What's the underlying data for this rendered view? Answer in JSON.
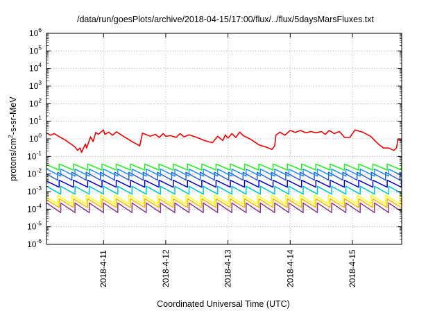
{
  "chart_data": {
    "type": "line",
    "title": "/data/run/goesPlots/archive/2018-04-15/17:00/flux/../flux/5daysMarsFluxes.txt",
    "xlabel": "Coordinated Universal Time (UTC)",
    "ylabel": {
      "pre": "protons/cm",
      "sup": "2",
      "post": "-s-sr-MeV"
    },
    "y_scale": "log",
    "ylim": [
      1e-06,
      1000000.0
    ],
    "x_range_days": [
      "2018-04-10 02:00",
      "2018-04-15 19:00"
    ],
    "x_ticks": [
      "2018-4-11",
      "2018-4-12",
      "2018-4-13",
      "2018-4-14",
      "2018-4-15"
    ],
    "y_ticks": [
      {
        "base": "10",
        "exp": "-6"
      },
      {
        "base": "10",
        "exp": "-5"
      },
      {
        "base": "10",
        "exp": "-4"
      },
      {
        "base": "10",
        "exp": "-3"
      },
      {
        "base": "10",
        "exp": "-2"
      },
      {
        "base": "10",
        "exp": "-1"
      },
      {
        "base": "10",
        "exp": "0"
      },
      {
        "base": "10",
        "exp": "1"
      },
      {
        "base": "10",
        "exp": "2"
      },
      {
        "base": "10",
        "exp": "3"
      },
      {
        "base": "10",
        "exp": "4"
      },
      {
        "base": "10",
        "exp": "5"
      },
      {
        "base": "10",
        "exp": "6"
      }
    ],
    "grid": true,
    "series": [
      {
        "color": "#ee0000",
        "x": [
          "2018-04-10 02:00",
          "2018-04-10 03:30",
          "2018-04-10 05:00",
          "2018-04-10 07:00",
          "2018-04-10 09:00",
          "2018-04-10 11:30",
          "2018-04-10 13:00",
          "2018-04-10 14:00",
          "2018-04-10 15:00",
          "2018-04-10 15:30",
          "2018-04-10 17:00",
          "2018-04-10 17:30",
          "2018-04-10 19:00",
          "2018-04-10 20:00",
          "2018-04-10 21:00",
          "2018-04-10 22:00",
          "2018-04-11 00:00",
          "2018-04-11 00:30",
          "2018-04-11 02:00",
          "2018-04-11 03:30",
          "2018-04-11 05:00",
          "2018-04-11 08:00",
          "2018-04-11 11:00",
          "2018-04-11 14:00",
          "2018-04-11 15:00",
          "2018-04-11 18:00",
          "2018-04-11 20:00",
          "2018-04-11 21:30",
          "2018-04-11 23:00",
          "2018-04-12 00:00",
          "2018-04-12 02:00",
          "2018-04-12 04:00",
          "2018-04-12 05:30",
          "2018-04-12 07:00",
          "2018-04-12 09:00",
          "2018-04-12 12:00",
          "2018-04-12 15:00",
          "2018-04-12 18:00",
          "2018-04-12 20:00",
          "2018-04-12 22:00",
          "2018-04-12 23:00",
          "2018-04-13 00:00",
          "2018-04-13 01:30",
          "2018-04-13 03:00",
          "2018-04-13 04:30",
          "2018-04-13 06:00",
          "2018-04-13 09:00",
          "2018-04-13 12:00",
          "2018-04-13 15:00",
          "2018-04-13 17:00",
          "2018-04-13 18:00",
          "2018-04-13 18:30",
          "2018-04-13 20:00",
          "2018-04-13 22:00",
          "2018-04-14 00:00",
          "2018-04-14 02:00",
          "2018-04-14 04:00",
          "2018-04-14 06:00",
          "2018-04-14 08:00",
          "2018-04-14 10:00",
          "2018-04-14 12:00",
          "2018-04-14 13:30",
          "2018-04-14 15:00",
          "2018-04-14 17:00",
          "2018-04-14 19:00",
          "2018-04-14 21:00",
          "2018-04-14 23:00",
          "2018-04-15 01:00",
          "2018-04-15 04:00",
          "2018-04-15 07:00",
          "2018-04-15 10:00",
          "2018-04-15 12:00",
          "2018-04-15 14:00",
          "2018-04-15 16:00",
          "2018-04-15 17:00",
          "2018-04-15 17:30",
          "2018-04-15 19:00"
        ],
        "values": [
          2.2,
          1.6,
          2.0,
          1.3,
          0.9,
          0.5,
          0.35,
          0.22,
          0.3,
          0.17,
          0.5,
          0.3,
          1.3,
          0.7,
          2.3,
          1.8,
          3.2,
          1.8,
          2.4,
          1.6,
          2.5,
          1.3,
          0.7,
          0.4,
          2.1,
          1.4,
          1.8,
          1.2,
          2.0,
          1.4,
          1.5,
          1.2,
          2.0,
          1.3,
          1.7,
          1.2,
          0.8,
          0.6,
          1.4,
          0.8,
          1.7,
          1.1,
          2.0,
          1.2,
          2.4,
          1.5,
          0.9,
          0.45,
          0.33,
          0.25,
          0.4,
          1.6,
          2.4,
          1.6,
          3.0,
          2.3,
          3.0,
          2.2,
          2.6,
          2.2,
          2.6,
          1.8,
          3.0,
          2.0,
          2.6,
          1.2,
          1.2,
          3.2,
          2.4,
          1.4,
          0.5,
          0.3,
          0.3,
          0.22,
          0.3,
          0.9,
          0.8
        ]
      },
      {
        "color": "#22ee22",
        "base": 0.025,
        "swing": 0.35
      },
      {
        "color": "#1e90ff",
        "base": 0.012,
        "swing": 0.4
      },
      {
        "color": "#2a5fcf",
        "base": 0.0075,
        "swing": 0.45
      },
      {
        "color": "#0000cc",
        "base": 0.0028,
        "swing": 0.4
      },
      {
        "color": "#00c8c8",
        "base": 0.0012,
        "swing": 0.45
      },
      {
        "color": "#ffff00",
        "base": 0.00035,
        "swing": 0.5
      },
      {
        "color": "#ffb400",
        "base": 0.00022,
        "swing": 0.5
      },
      {
        "color": "#8a3a8a",
        "base": 0.00012,
        "swing": 0.55
      }
    ]
  }
}
